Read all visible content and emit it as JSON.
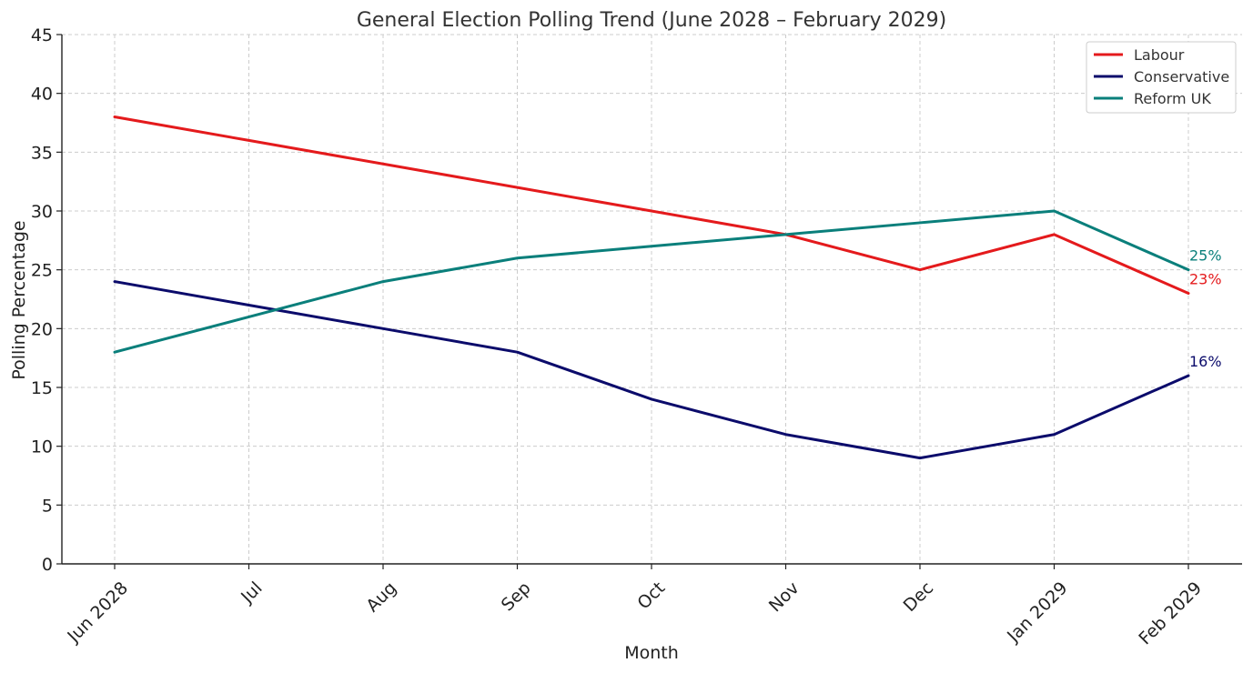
{
  "chart_data": {
    "type": "line",
    "title": "General Election Polling Trend (June 2028 – February 2029)",
    "xlabel": "Month",
    "ylabel": "Polling Percentage",
    "categories": [
      "Jun 2028",
      "Jul",
      "Aug",
      "Sep",
      "Oct",
      "Nov",
      "Dec",
      "Jan 2029",
      "Feb 2029"
    ],
    "ylim": [
      0,
      45
    ],
    "yticks": [
      0,
      5,
      10,
      15,
      20,
      25,
      30,
      35,
      40,
      45
    ],
    "grid": true,
    "legend_position": "top-right",
    "series": [
      {
        "name": "Labour",
        "color": "#e41a1c",
        "values": [
          38,
          36,
          34,
          32,
          30,
          28,
          25,
          28,
          23
        ],
        "end_label": "23%"
      },
      {
        "name": "Conservative",
        "color": "#0b0b6b",
        "values": [
          24,
          22,
          20,
          18,
          14,
          11,
          9,
          11,
          16
        ],
        "end_label": "16%"
      },
      {
        "name": "Reform UK",
        "color": "#0a7f7b",
        "values": [
          18,
          21,
          24,
          26,
          27,
          28,
          29,
          30,
          25
        ],
        "end_label": "25%"
      }
    ]
  }
}
